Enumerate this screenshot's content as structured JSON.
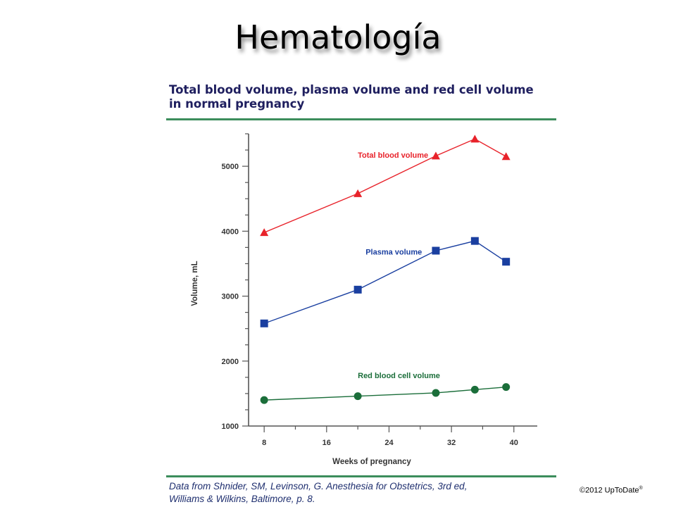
{
  "slide": {
    "title": "Hematología",
    "copyright": "©2012 UpToDate",
    "copyright_mark": "®"
  },
  "chart_data": {
    "type": "line",
    "title": "Total blood volume, plasma volume and red cell volume in normal pregnancy",
    "title_lines": [
      "Total blood volume, plasma volume and red cell volume",
      "in normal pregnancy"
    ],
    "xlabel": "Weeks of pregnancy",
    "ylabel": "Volume, mL",
    "xlim": [
      6,
      43
    ],
    "ylim": [
      1000,
      5500
    ],
    "xticks": [
      8,
      16,
      24,
      32,
      40
    ],
    "yticks": [
      1000,
      2000,
      3000,
      4000,
      5000
    ],
    "grid": false,
    "series": [
      {
        "name": "Total blood volume",
        "color": "#e8222a",
        "marker": "triangle",
        "x": [
          8,
          20,
          30,
          35,
          39
        ],
        "y": [
          3980,
          4580,
          5160,
          5420,
          5150
        ]
      },
      {
        "name": "Plasma volume",
        "color": "#1a3fa0",
        "marker": "square",
        "x": [
          8,
          20,
          30,
          35,
          39
        ],
        "y": [
          2580,
          3100,
          3700,
          3850,
          3530
        ]
      },
      {
        "name": "Red blood cell volume",
        "color": "#1b6e3a",
        "marker": "circle",
        "x": [
          8,
          20,
          30,
          35,
          39
        ],
        "y": [
          1400,
          1460,
          1510,
          1560,
          1600
        ]
      }
    ]
  },
  "source": {
    "line1": "Data from Shnider, SM, Levinson, G. Anesthesia for Obstetrics, 3rd ed,",
    "line2": "Williams & Wilkins, Baltimore, p. 8."
  }
}
